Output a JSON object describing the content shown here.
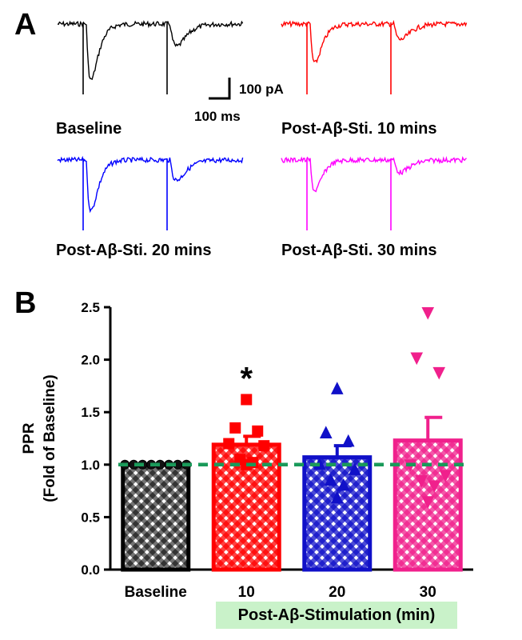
{
  "panel_a": {
    "label": "A",
    "scale_bar": {
      "y_text": "100 pA",
      "x_text": "100 ms"
    },
    "traces": [
      {
        "label": "Baseline",
        "color": "#000000"
      },
      {
        "label": "Post-Aβ-Sti. 10 mins",
        "color": "#ff0000"
      },
      {
        "label": "Post-Aβ-Sti. 20 mins",
        "color": "#0000ff"
      },
      {
        "label": "Post-Aβ-Sti. 30 mins",
        "color": "#ff00ff"
      }
    ]
  },
  "panel_b": {
    "label": "B"
  },
  "chart_data": {
    "type": "bar",
    "categories": [
      "Baseline",
      "10",
      "20",
      "30"
    ],
    "values": [
      1.0,
      1.19,
      1.07,
      1.23
    ],
    "errors": [
      0.0,
      0.08,
      0.11,
      0.22
    ],
    "ylabel": "PPR",
    "ylabel2": "(Fold of Baseline)",
    "xlabel": "Post-Aβ-Stimulation (min)",
    "ylim": [
      0,
      2.5
    ],
    "yticks": [
      "0.0",
      "0.5",
      "1.0",
      "1.5",
      "2.0",
      "2.5"
    ],
    "reference_line": 1.0,
    "significance": [
      {
        "category": "10",
        "mark": "*"
      }
    ],
    "colors": [
      "#000000",
      "#ff0000",
      "#1010c8",
      "#f0208c"
    ],
    "markers": [
      "circle",
      "square",
      "triangle-up",
      "triangle-down"
    ],
    "points": [
      [
        1.0,
        1.0,
        1.0,
        1.0,
        1.0,
        1.0,
        1.0,
        1.0
      ],
      [
        1.62,
        1.35,
        1.32,
        1.2,
        1.18,
        1.05,
        1.02,
        1.0
      ],
      [
        1.72,
        1.3,
        1.22,
        1.0,
        0.95,
        0.85,
        0.8,
        0.68
      ],
      [
        2.45,
        2.02,
        1.88,
        1.0,
        0.9,
        0.85,
        0.8,
        0.65
      ]
    ],
    "grid": false,
    "reference_line_color": "#1a9a5a",
    "xlabel_highlight_color": "#c9f2c9"
  }
}
